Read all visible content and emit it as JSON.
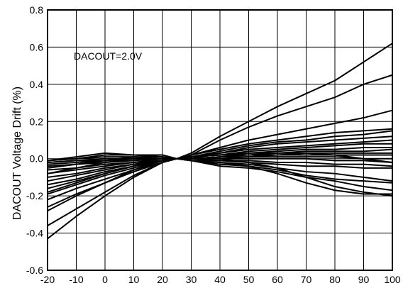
{
  "chart_data": {
    "type": "line",
    "title": "",
    "xlabel": "",
    "ylabel": "DACOUT Voltage Drift (%)",
    "annotation": "DACOUT=2.0V",
    "xlim": [
      -20,
      100
    ],
    "ylim": [
      -0.6,
      0.8
    ],
    "grid": true,
    "x": [
      -20,
      -10,
      0,
      10,
      20,
      25,
      30,
      40,
      50,
      60,
      70,
      80,
      90,
      100
    ],
    "xticks": [
      -20,
      -10,
      0,
      10,
      20,
      30,
      40,
      50,
      60,
      70,
      80,
      90,
      100
    ],
    "xtick_labels": [
      "-20",
      "-10",
      "0",
      "10",
      "20",
      "30",
      "40",
      "50",
      "60",
      "70",
      "80",
      "90",
      "100"
    ],
    "yticks": [
      -0.6,
      -0.4,
      -0.2,
      0.0,
      0.2,
      0.4,
      0.6,
      0.8
    ],
    "ytick_labels": [
      "-0.6",
      "-0.4",
      "-0.2",
      "0.0",
      "0.2",
      "0.4",
      "0.6",
      "0.8"
    ],
    "series": [
      {
        "values": [
          -0.43,
          -0.31,
          -0.2,
          -0.1,
          -0.02,
          0.0,
          0.03,
          0.12,
          0.2,
          0.28,
          0.35,
          0.42,
          0.52,
          0.62
        ]
      },
      {
        "values": [
          -0.36,
          -0.27,
          -0.18,
          -0.09,
          -0.02,
          0.0,
          0.02,
          0.1,
          0.17,
          0.23,
          0.28,
          0.33,
          0.4,
          0.45
        ]
      },
      {
        "values": [
          -0.26,
          -0.19,
          -0.13,
          -0.07,
          -0.02,
          0.0,
          0.02,
          0.06,
          0.1,
          0.13,
          0.16,
          0.19,
          0.22,
          0.26
        ]
      },
      {
        "values": [
          -0.22,
          -0.16,
          -0.11,
          -0.06,
          -0.02,
          0.0,
          0.02,
          0.05,
          0.08,
          0.1,
          0.12,
          0.14,
          0.15,
          0.16
        ]
      },
      {
        "values": [
          -0.19,
          -0.14,
          -0.09,
          -0.05,
          -0.01,
          0.0,
          0.01,
          0.04,
          0.07,
          0.09,
          0.1,
          0.12,
          0.13,
          0.15
        ]
      },
      {
        "values": [
          -0.16,
          -0.12,
          -0.08,
          -0.04,
          -0.01,
          0.0,
          0.01,
          0.03,
          0.06,
          0.08,
          0.09,
          0.1,
          0.11,
          0.12
        ]
      },
      {
        "values": [
          -0.14,
          -0.11,
          -0.07,
          -0.04,
          -0.01,
          0.0,
          0.01,
          0.03,
          0.05,
          0.06,
          0.07,
          0.08,
          0.09,
          0.1
        ]
      },
      {
        "values": [
          -0.12,
          -0.09,
          -0.06,
          -0.03,
          -0.01,
          0.0,
          0.01,
          0.02,
          0.04,
          0.05,
          0.06,
          0.07,
          0.08,
          0.08
        ]
      },
      {
        "values": [
          -0.1,
          -0.08,
          -0.05,
          -0.03,
          -0.01,
          0.0,
          0.01,
          0.02,
          0.03,
          0.04,
          0.05,
          0.05,
          0.06,
          0.06
        ]
      },
      {
        "values": [
          -0.08,
          -0.06,
          -0.04,
          -0.02,
          -0.01,
          0.0,
          0.01,
          0.02,
          0.03,
          0.03,
          0.04,
          0.04,
          0.04,
          0.05
        ]
      },
      {
        "values": [
          -0.06,
          -0.05,
          -0.03,
          -0.02,
          0.0,
          0.0,
          0.0,
          0.01,
          0.02,
          0.02,
          0.03,
          0.03,
          0.03,
          0.03
        ]
      },
      {
        "values": [
          -0.04,
          -0.03,
          -0.02,
          -0.01,
          0.0,
          0.0,
          0.0,
          0.01,
          0.01,
          0.02,
          0.02,
          0.02,
          0.02,
          0.02
        ]
      },
      {
        "values": [
          -0.02,
          -0.01,
          -0.01,
          0.0,
          0.0,
          0.0,
          0.0,
          0.0,
          0.01,
          0.01,
          0.01,
          0.01,
          0.0,
          0.0
        ]
      },
      {
        "values": [
          -0.03,
          -0.02,
          -0.01,
          0.0,
          0.0,
          0.0,
          0.0,
          0.0,
          0.0,
          0.0,
          0.0,
          -0.01,
          -0.01,
          -0.02
        ]
      },
      {
        "values": [
          -0.02,
          -0.01,
          0.0,
          0.0,
          0.0,
          0.0,
          0.0,
          -0.01,
          -0.01,
          -0.02,
          -0.02,
          -0.03,
          -0.03,
          -0.04
        ]
      },
      {
        "values": [
          -0.01,
          0.0,
          0.01,
          0.01,
          0.0,
          0.0,
          -0.01,
          -0.01,
          -0.02,
          -0.03,
          -0.04,
          -0.04,
          -0.05,
          -0.05
        ]
      },
      {
        "values": [
          -0.01,
          0.0,
          0.02,
          0.02,
          0.01,
          0.0,
          -0.01,
          -0.02,
          -0.03,
          -0.05,
          -0.07,
          -0.08,
          -0.1,
          -0.12
        ]
      },
      {
        "values": [
          -0.01,
          0.01,
          0.03,
          0.02,
          0.02,
          0.0,
          -0.01,
          -0.04,
          -0.05,
          -0.07,
          -0.1,
          -0.12,
          -0.15,
          -0.17
        ]
      },
      {
        "values": [
          -0.08,
          -0.05,
          -0.02,
          0.0,
          0.0,
          0.0,
          -0.01,
          -0.03,
          -0.04,
          -0.06,
          -0.09,
          -0.11,
          -0.12,
          -0.13
        ]
      },
      {
        "values": [
          -0.05,
          -0.03,
          -0.01,
          0.01,
          0.01,
          0.0,
          -0.01,
          -0.02,
          -0.04,
          -0.08,
          -0.13,
          -0.17,
          -0.19,
          -0.19
        ]
      },
      {
        "values": [
          -0.18,
          -0.13,
          -0.08,
          -0.04,
          -0.01,
          0.0,
          0.01,
          0.02,
          0.02,
          0.03,
          0.03,
          0.02,
          0.0,
          -0.02
        ]
      },
      {
        "values": [
          -0.28,
          -0.2,
          -0.13,
          -0.06,
          -0.01,
          0.0,
          0.01,
          0.0,
          -0.02,
          -0.05,
          -0.1,
          -0.15,
          -0.18,
          -0.2
        ]
      }
    ]
  }
}
